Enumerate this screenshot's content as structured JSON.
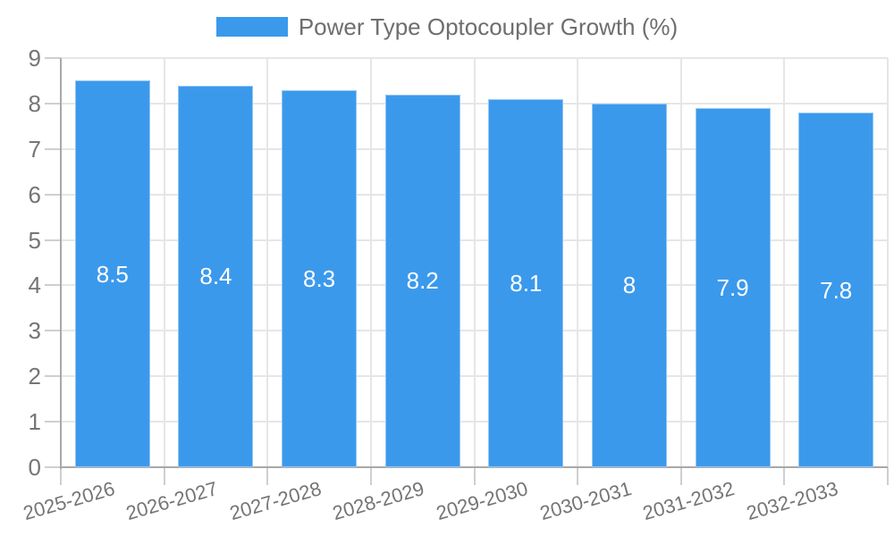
{
  "legend": {
    "label": "Power Type Optocoupler Growth (%)"
  },
  "colors": {
    "bar": "#3b99ec",
    "grid": "#e6e6e6",
    "axis": "#a8a8a8",
    "tick": "#cfcfcf",
    "axis_text": "#757575",
    "value_text": "#ffffff"
  },
  "chart_data": {
    "type": "bar",
    "title": "Power Type Optocoupler Growth (%)",
    "categories": [
      "2025-2026",
      "2026-2027",
      "2027-2028",
      "2028-2029",
      "2029-2030",
      "2030-2031",
      "2031-2032",
      "2032-2033"
    ],
    "values": [
      8.5,
      8.4,
      8.3,
      8.2,
      8.1,
      8,
      7.9,
      7.8
    ],
    "value_labels": [
      "8.5",
      "8.4",
      "8.3",
      "8.2",
      "8.1",
      "8",
      "7.9",
      "7.8"
    ],
    "xlabel": "",
    "ylabel": "",
    "ylim": [
      0,
      9
    ],
    "yticks": [
      0,
      1,
      2,
      3,
      4,
      5,
      6,
      7,
      8,
      9
    ],
    "grid": true,
    "legend_position": "top",
    "value_label_position": "inside-middle",
    "x_label_rotation_deg": -16
  }
}
